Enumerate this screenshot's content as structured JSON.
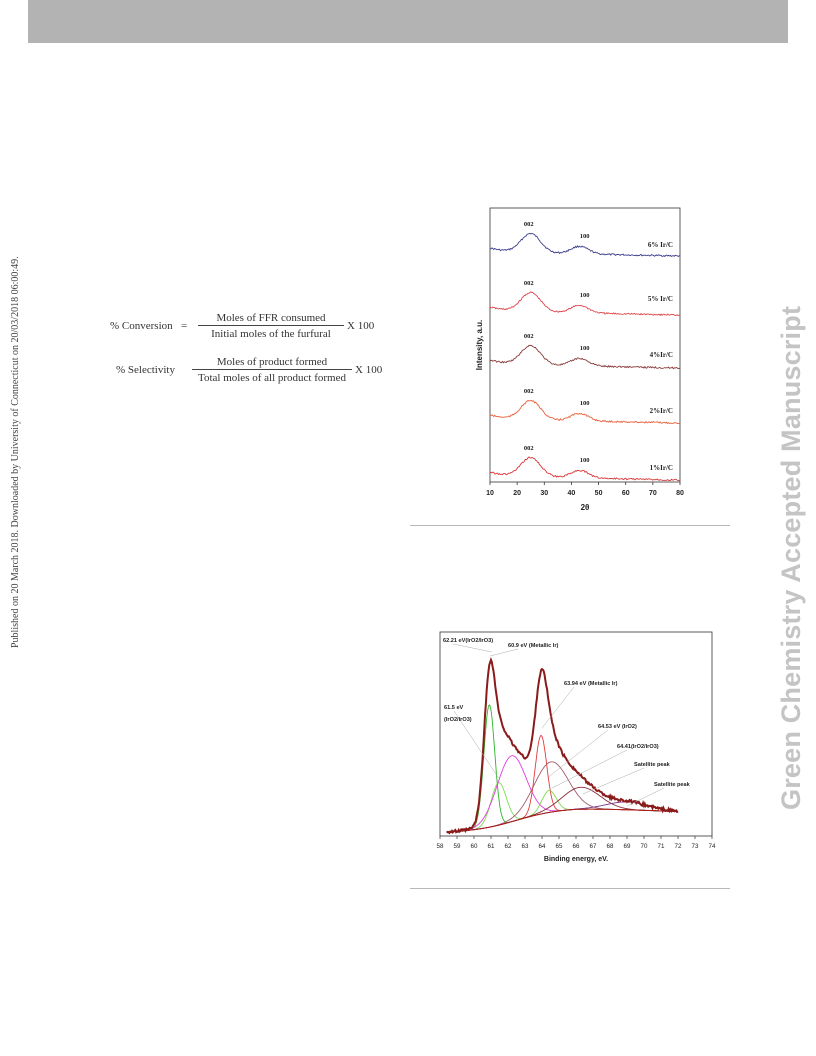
{
  "margin_note": "Published on 20 March 2018. Downloaded by University of Connecticut on 20/03/2018 06:00:49.",
  "watermark": "Green Chemistry Accepted Manuscript",
  "equations": {
    "conversion": {
      "lhs": "% Conversion",
      "equals": "=",
      "numerator": "Moles of FFR consumed",
      "denominator": "Initial moles of the furfural",
      "multiplier": "X 100"
    },
    "selectivity": {
      "lhs": "% Selectivity",
      "equals": "",
      "numerator": "Moles of product formed",
      "denominator": "Total moles of all product formed",
      "multiplier": "X 100"
    }
  },
  "xrd_figure": {
    "chart_data": {
      "type": "line",
      "xlabel": "2θ",
      "ylabel": "Intensity, a.u.",
      "xlim": [
        10,
        80
      ],
      "xticks": [
        10,
        20,
        30,
        40,
        50,
        60,
        70,
        80
      ],
      "peak_labels": [
        {
          "text": "002",
          "x": 25
        },
        {
          "text": "100",
          "x": 43
        }
      ],
      "series": [
        {
          "name": "6% Ir/C",
          "color": "#3a3d8c"
        },
        {
          "name": "5% Ir/C",
          "color": "#e0474c"
        },
        {
          "name": "4%Ir/C",
          "color": "#8a3a3a"
        },
        {
          "name": "2%Ir/C",
          "color": "#e8603c"
        },
        {
          "name": "1%Ir/C",
          "color": "#d93636"
        }
      ]
    }
  },
  "xps_figure": {
    "chart_data": {
      "type": "line",
      "xlabel": "Binding energy, eV.",
      "xlim": [
        58,
        74
      ],
      "xticks": [
        58,
        59,
        60,
        61,
        62,
        63,
        64,
        65,
        66,
        67,
        68,
        69,
        70,
        71,
        72,
        73,
        74
      ],
      "annotations": [
        "62.21 eV(IrO2/IrO3)",
        "60.9 eV (Metallic Ir)",
        "61.5 eV",
        "(IrO2/IrO3)",
        "63.94 eV (Metallic Ir)",
        "64.53 eV (IrO2)",
        "64.41(IrO2/IrO3)",
        "Satellite peak",
        "Satellite peak"
      ],
      "components": [
        {
          "center": 60.9,
          "color": "#2bb52b"
        },
        {
          "center": 61.5,
          "color": "#7fdc4f"
        },
        {
          "center": 62.21,
          "color": "#e33ce0"
        },
        {
          "center": 63.94,
          "color": "#e23a3a"
        },
        {
          "center": 64.41,
          "color": "#7fdc4f"
        },
        {
          "center": 64.53,
          "color": "#a05c6c"
        },
        {
          "center": 66.3,
          "color": "#8a2b3a"
        },
        {
          "center": 69.0,
          "color": "#7a3b8a"
        }
      ],
      "envelope_color": "#8b1a1a",
      "background_color": "#b01818"
    }
  }
}
